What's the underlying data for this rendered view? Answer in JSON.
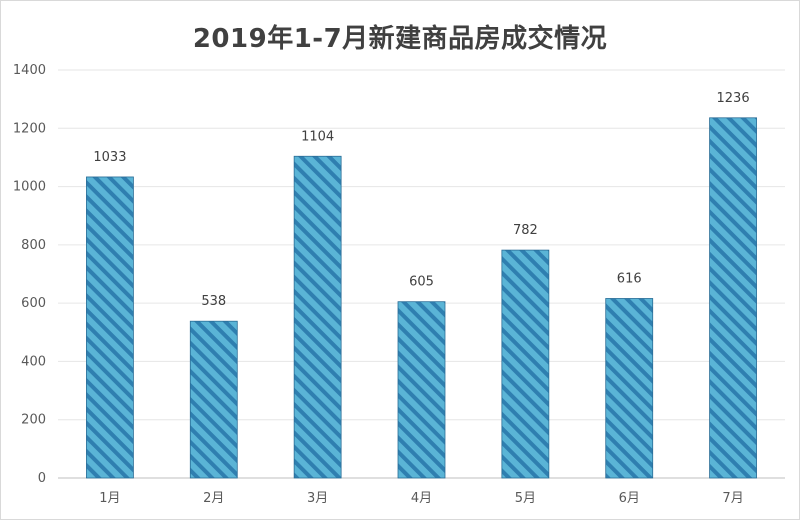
{
  "chart_data": {
    "type": "bar",
    "title": "2019年1-7月新建商品房成交情况",
    "categories": [
      "1月",
      "2月",
      "3月",
      "4月",
      "5月",
      "6月",
      "7月"
    ],
    "values": [
      1033,
      538,
      1104,
      605,
      782,
      616,
      1236
    ],
    "ylim": [
      0,
      1400
    ],
    "yticks": [
      0,
      200,
      400,
      600,
      800,
      1000,
      1200,
      1400
    ],
    "grid": true,
    "colors": {
      "bar_fill": "#5ab4d6",
      "bar_stripe": "#2f7fb0",
      "bar_edge": "#2a6d96",
      "grid": "#e6e6e6"
    }
  }
}
